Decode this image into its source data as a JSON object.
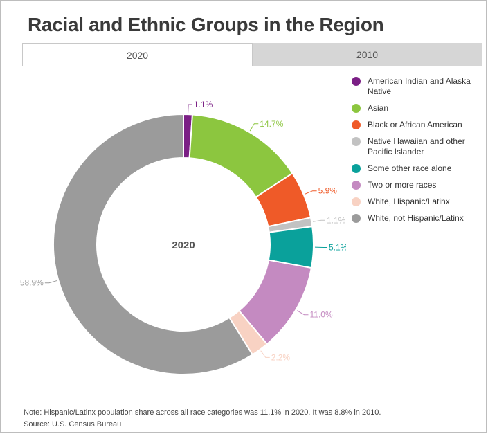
{
  "title": "Racial and Ethnic Groups in the Region",
  "tabs": [
    {
      "label": "2020",
      "active": true
    },
    {
      "label": "2010",
      "active": false
    }
  ],
  "chart_data": {
    "type": "pie",
    "variant": "donut",
    "center_label": "2020",
    "slices": [
      {
        "name": "American Indian and Alaska Native",
        "value": 1.1,
        "label": "1.1%",
        "color": "#7b1f85"
      },
      {
        "name": "Asian",
        "value": 14.7,
        "label": "14.7%",
        "color": "#8cc63f"
      },
      {
        "name": "Black or African American",
        "value": 5.9,
        "label": "5.9%",
        "color": "#ef5a28"
      },
      {
        "name": "Native Hawaiian and other Pacific Islander",
        "value": 1.1,
        "label": "1.1%",
        "color": "#c2c2c2"
      },
      {
        "name": "Some other race alone",
        "value": 5.1,
        "label": "5.1%",
        "color": "#0aa19b"
      },
      {
        "name": "Two or more races",
        "value": 11.0,
        "label": "11.0%",
        "color": "#c48ac1"
      },
      {
        "name": "White, Hispanic/Latinx",
        "value": 2.2,
        "label": "2.2%",
        "color": "#f8d2c3"
      },
      {
        "name": "White, not Hispanic/Latinx",
        "value": 58.9,
        "label": "58.9%",
        "color": "#9b9b9b"
      }
    ],
    "legend_position": "right"
  },
  "note": "Note: Hispanic/Latinx population share across all race categories was 11.1% in 2020. It was 8.8% in 2010.",
  "source": "Source: U.S. Census Bureau"
}
